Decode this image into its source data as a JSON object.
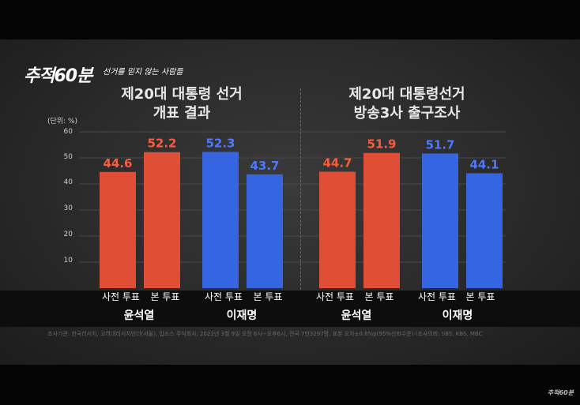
{
  "logo": {
    "text": "추적60분",
    "subtitle": "선거를 믿지 않는 사람들"
  },
  "unit_label": "(단위: %)",
  "y_ticks": [
    "60",
    "50",
    "40",
    "30",
    "20",
    "10"
  ],
  "candidates": [
    "윤석열",
    "이재명"
  ],
  "source": "조사기관: 한국리서치, 고려대리서치인더(서울), 입소스 주식회사, 2022년 3월 9일 오전 6시~오후6시, 전국 7만3297명, 표본 오차±0.8%p(95%신뢰수준) (조사의뢰: SBS, KBS, MBC",
  "watermark": "추적60분",
  "colors": {
    "yoon": "#e04e36",
    "lee": "#3565e0",
    "yoon_label": "#ff5a3d",
    "lee_label": "#4d78ff"
  },
  "chart_data": [
    {
      "type": "bar",
      "title": "제20대 대통령 선거\n개표 결과",
      "title_line1": "제20대 대통령 선거",
      "title_line2": "개표 결과",
      "ylabel": "(단위: %)",
      "ylim": [
        0,
        60
      ],
      "categories": [
        "사전 투표",
        "본 투표",
        "사전 투표",
        "본 투표"
      ],
      "groups": [
        "윤석열",
        "윤석열",
        "이재명",
        "이재명"
      ],
      "values": [
        44.6,
        52.2,
        52.3,
        43.7
      ],
      "value_labels": [
        "44.6",
        "52.2",
        "52.3",
        "43.7"
      ]
    },
    {
      "type": "bar",
      "title": "제20대 대통령선거\n방송3사 출구조사",
      "title_line1": "제20대 대통령선거",
      "title_line2": "방송3사 출구조사",
      "ylabel": "(단위: %)",
      "ylim": [
        0,
        60
      ],
      "categories": [
        "사전 투표",
        "본 투표",
        "사전 투표",
        "본 투표"
      ],
      "groups": [
        "윤석열",
        "윤석열",
        "이재명",
        "이재명"
      ],
      "values": [
        44.7,
        51.9,
        51.7,
        44.1
      ],
      "value_labels": [
        "44.7",
        "51.9",
        "51.7",
        "44.1"
      ]
    }
  ]
}
